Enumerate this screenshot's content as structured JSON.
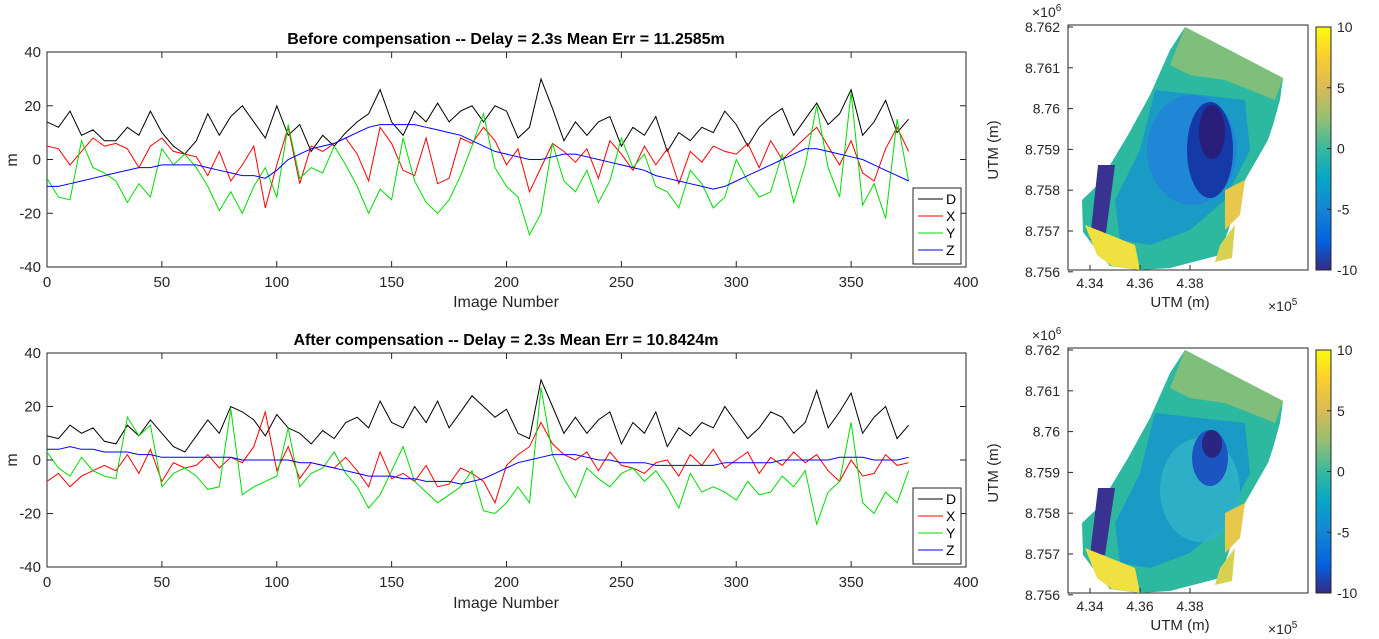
{
  "chart_data": [
    {
      "type": "line",
      "title": "Before compensation -- Delay = 2.3s Mean Err = 11.2585m",
      "xlabel": "Image Number",
      "ylabel": "m",
      "xlim": [
        0,
        400
      ],
      "ylim": [
        -40,
        40
      ],
      "xticks": [
        0,
        50,
        100,
        150,
        200,
        250,
        300,
        350,
        400
      ],
      "yticks": [
        -40,
        -20,
        0,
        20,
        40
      ],
      "grid": false,
      "legend_position": "bottom-right",
      "x": [
        0,
        5,
        10,
        15,
        20,
        25,
        30,
        35,
        40,
        45,
        50,
        55,
        60,
        65,
        70,
        75,
        80,
        85,
        90,
        95,
        100,
        105,
        110,
        115,
        120,
        125,
        130,
        135,
        140,
        145,
        150,
        155,
        160,
        165,
        170,
        175,
        180,
        185,
        190,
        195,
        200,
        205,
        210,
        215,
        220,
        225,
        230,
        235,
        240,
        245,
        250,
        255,
        260,
        265,
        270,
        275,
        280,
        285,
        290,
        295,
        300,
        305,
        310,
        315,
        320,
        325,
        330,
        335,
        340,
        345,
        350,
        355,
        360,
        365,
        370,
        375
      ],
      "series": [
        {
          "name": "D",
          "color": "#000000",
          "values": [
            14,
            12,
            18,
            9,
            11,
            7,
            7,
            12,
            9,
            18,
            10,
            5,
            2,
            7,
            17,
            9,
            16,
            20,
            14,
            8,
            20,
            9,
            13,
            3,
            9,
            5,
            10,
            14,
            17,
            26,
            14,
            9,
            18,
            14,
            21,
            14,
            18,
            20,
            14,
            20,
            18,
            8,
            12,
            30,
            19,
            7,
            14,
            9,
            14,
            16,
            5,
            12,
            9,
            16,
            3,
            10,
            7,
            12,
            10,
            18,
            13,
            5,
            12,
            16,
            19,
            9,
            15,
            21,
            13,
            17,
            26,
            9,
            14,
            22,
            10,
            15
          ]
        },
        {
          "name": "X",
          "color": "#ff0000",
          "values": [
            5,
            4,
            -2,
            3,
            8,
            5,
            6,
            4,
            -3,
            5,
            8,
            3,
            2,
            1,
            -6,
            3,
            -8,
            -2,
            5,
            -18,
            -2,
            12,
            -9,
            5,
            3,
            6,
            8,
            2,
            -8,
            12,
            6,
            -4,
            -6,
            8,
            -9,
            -7,
            8,
            6,
            12,
            7,
            -2,
            4,
            -12,
            -3,
            6,
            3,
            -1,
            4,
            -7,
            7,
            2,
            -4,
            5,
            -2,
            4,
            -9,
            3,
            -1,
            5,
            3,
            2,
            6,
            -3,
            7,
            0,
            4,
            8,
            12,
            5,
            -2,
            7,
            -5,
            -8,
            4,
            12,
            3
          ]
        },
        {
          "name": "Y",
          "color": "#00dd00",
          "values": [
            -7,
            -14,
            -15,
            7,
            -3,
            -5,
            -8,
            -16,
            -9,
            -14,
            4,
            -2,
            2,
            -3,
            -10,
            -19,
            -12,
            -20,
            -10,
            -3,
            -14,
            13,
            -7,
            -3,
            -5,
            5,
            -2,
            -10,
            -20,
            -11,
            -15,
            8,
            -8,
            -16,
            -20,
            -15,
            -6,
            5,
            17,
            -3,
            -10,
            -14,
            -28,
            -20,
            6,
            -8,
            -12,
            -4,
            -16,
            -8,
            8,
            -3,
            2,
            -10,
            -12,
            -18,
            -4,
            -9,
            -18,
            -14,
            0,
            -8,
            -14,
            -12,
            2,
            -16,
            -2,
            20,
            -3,
            -14,
            25,
            -17,
            -9,
            -22,
            15,
            -8
          ]
        },
        {
          "name": "Z",
          "color": "#0000ff",
          "values": [
            -10,
            -10,
            -9,
            -8,
            -7,
            -6,
            -5,
            -4,
            -3,
            -3,
            -2,
            -2,
            -2,
            -2,
            -3,
            -4,
            -5,
            -6,
            -6,
            -7,
            -4,
            0,
            2,
            4,
            5,
            6,
            8,
            10,
            12,
            13,
            13,
            13,
            13,
            12,
            11,
            10,
            9,
            7,
            5,
            3,
            2,
            1,
            0,
            0,
            1,
            2,
            2,
            1,
            0,
            -1,
            -2,
            -3,
            -4,
            -6,
            -7,
            -8,
            -9,
            -10,
            -11,
            -10,
            -8,
            -6,
            -4,
            -2,
            0,
            2,
            4,
            4,
            3,
            2,
            1,
            0,
            -2,
            -4,
            -6,
            -8
          ]
        }
      ]
    },
    {
      "type": "line",
      "title": "After compensation -- Delay = 2.3s Mean Err = 10.8424m",
      "xlabel": "Image Number",
      "ylabel": "m",
      "xlim": [
        0,
        400
      ],
      "ylim": [
        -40,
        40
      ],
      "xticks": [
        0,
        50,
        100,
        150,
        200,
        250,
        300,
        350,
        400
      ],
      "yticks": [
        -40,
        -20,
        0,
        20,
        40
      ],
      "grid": false,
      "legend_position": "bottom-right",
      "x": [
        0,
        5,
        10,
        15,
        20,
        25,
        30,
        35,
        40,
        45,
        50,
        55,
        60,
        65,
        70,
        75,
        80,
        85,
        90,
        95,
        100,
        105,
        110,
        115,
        120,
        125,
        130,
        135,
        140,
        145,
        150,
        155,
        160,
        165,
        170,
        175,
        180,
        185,
        190,
        195,
        200,
        205,
        210,
        215,
        220,
        225,
        230,
        235,
        240,
        245,
        250,
        255,
        260,
        265,
        270,
        275,
        280,
        285,
        290,
        295,
        300,
        305,
        310,
        315,
        320,
        325,
        330,
        335,
        340,
        345,
        350,
        355,
        360,
        365,
        370,
        375
      ],
      "series": [
        {
          "name": "D",
          "color": "#000000",
          "values": [
            9,
            8,
            13,
            10,
            12,
            7,
            6,
            13,
            9,
            15,
            10,
            5,
            3,
            9,
            15,
            10,
            20,
            18,
            15,
            9,
            17,
            12,
            10,
            6,
            11,
            8,
            14,
            16,
            12,
            22,
            14,
            12,
            20,
            14,
            22,
            12,
            18,
            24,
            20,
            16,
            19,
            10,
            8,
            30,
            20,
            10,
            16,
            10,
            15,
            18,
            6,
            14,
            10,
            18,
            5,
            12,
            9,
            14,
            12,
            20,
            14,
            8,
            12,
            18,
            16,
            10,
            14,
            26,
            12,
            18,
            25,
            10,
            16,
            20,
            8,
            13
          ]
        },
        {
          "name": "X",
          "color": "#ff0000",
          "values": [
            -8,
            -5,
            -10,
            -6,
            -4,
            -2,
            -4,
            2,
            -5,
            4,
            -8,
            -1,
            -3,
            -2,
            2,
            -3,
            1,
            -1,
            5,
            18,
            -4,
            5,
            -7,
            -1,
            -2,
            -3,
            1,
            -4,
            -10,
            3,
            -7,
            -5,
            -8,
            -2,
            -10,
            -9,
            -3,
            -5,
            -8,
            -16,
            -2,
            2,
            5,
            14,
            6,
            2,
            0,
            3,
            -4,
            3,
            -2,
            -3,
            -5,
            -1,
            0,
            -6,
            2,
            -2,
            4,
            -3,
            0,
            3,
            -5,
            1,
            -2,
            3,
            -1,
            2,
            -4,
            -8,
            0,
            -6,
            -5,
            2,
            -2,
            -1
          ]
        },
        {
          "name": "Y",
          "color": "#00dd00",
          "values": [
            3,
            -3,
            -6,
            1,
            -4,
            -6,
            -7,
            16,
            9,
            13,
            -10,
            -5,
            -3,
            -6,
            -11,
            -10,
            19,
            -13,
            -10,
            -8,
            -6,
            12,
            -10,
            -5,
            -3,
            3,
            -5,
            -10,
            -18,
            -13,
            -4,
            5,
            -8,
            -12,
            -16,
            -13,
            -10,
            -4,
            -19,
            -20,
            -16,
            -10,
            -16,
            27,
            2,
            -7,
            -14,
            -3,
            -7,
            -10,
            -5,
            -3,
            -8,
            -4,
            -10,
            -18,
            -5,
            -12,
            -10,
            -12,
            -15,
            -8,
            -13,
            -12,
            -6,
            -10,
            -4,
            -24,
            -12,
            -8,
            14,
            -16,
            -20,
            -12,
            -16,
            -4
          ]
        },
        {
          "name": "Z",
          "color": "#0000ff",
          "values": [
            4,
            4,
            5,
            4,
            4,
            3,
            3,
            3,
            2,
            2,
            1,
            1,
            1,
            1,
            1,
            1,
            1,
            0,
            0,
            0,
            0,
            0,
            -1,
            -1,
            -2,
            -3,
            -4,
            -5,
            -6,
            -6,
            -6,
            -7,
            -7,
            -8,
            -8,
            -8,
            -9,
            -8,
            -7,
            -5,
            -3,
            -1,
            0,
            1,
            2,
            2,
            2,
            1,
            0,
            0,
            -1,
            -1,
            -1,
            -2,
            -2,
            -2,
            -2,
            -2,
            -2,
            -1,
            -1,
            -1,
            -1,
            -1,
            0,
            0,
            0,
            0,
            0,
            1,
            1,
            1,
            0,
            0,
            0,
            1
          ]
        }
      ]
    },
    {
      "type": "heatmap",
      "xlabel": "UTM (m)",
      "ylabel": "UTM (m)",
      "x_multiplier": "×10^5",
      "y_multiplier": "×10^6",
      "xlim": [
        4.33,
        4.395
      ],
      "ylim": [
        8.756,
        8.762
      ],
      "xticks": [
        "4.34",
        "4.36",
        "4.38"
      ],
      "yticks": [
        "8.762",
        "8.761",
        "8.76",
        "8.759",
        "8.758",
        "8.757",
        "8.756"
      ],
      "colorbar": {
        "min": -10,
        "max": 10,
        "ticks": [
          "10",
          "5",
          "0",
          "-5",
          "-10"
        ]
      }
    },
    {
      "type": "heatmap",
      "xlabel": "UTM (m)",
      "ylabel": "UTM (m)",
      "x_multiplier": "×10^5",
      "y_multiplier": "×10^6",
      "xlim": [
        4.33,
        4.395
      ],
      "ylim": [
        8.756,
        8.762
      ],
      "xticks": [
        "4.34",
        "4.36",
        "4.38"
      ],
      "yticks": [
        "8.762",
        "8.761",
        "8.76",
        "8.759",
        "8.758",
        "8.757",
        "8.756"
      ],
      "colorbar": {
        "min": -10,
        "max": 10,
        "ticks": [
          "10",
          "5",
          "0",
          "-5",
          "-10"
        ]
      }
    }
  ]
}
